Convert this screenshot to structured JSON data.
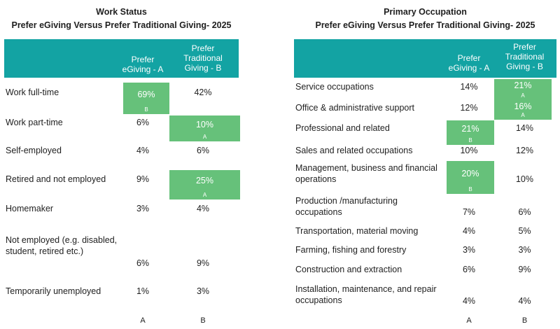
{
  "chart_data": [
    {
      "type": "table",
      "title": "Work Status",
      "subtitle": "Prefer eGiving Versus Prefer Traditional Giving- 2025",
      "columns": [
        "Prefer eGiving - A",
        "Prefer Traditional Giving - B"
      ],
      "footer": [
        "A",
        "B"
      ],
      "highlight_color": "#66c17a",
      "header_color": "#13a3a3",
      "rows": [
        {
          "label": "Work full-time",
          "a": "69%",
          "b": "42%",
          "highlight": "a",
          "sig": "B"
        },
        {
          "label": "Work part-time",
          "a": "6%",
          "b": "10%",
          "highlight": "b",
          "sig": "A"
        },
        {
          "label": "Self-employed",
          "a": "4%",
          "b": "6%",
          "highlight": "",
          "sig": ""
        },
        {
          "label": "Retired and not employed",
          "a": "9%",
          "b": "25%",
          "highlight": "b",
          "sig": "A"
        },
        {
          "label": "Homemaker",
          "a": "3%",
          "b": "4%",
          "highlight": "",
          "sig": ""
        },
        {
          "label": "Not employed (e.g. disabled, student, retired etc.)",
          "a": "6%",
          "b": "9%",
          "highlight": "",
          "sig": ""
        },
        {
          "label": "Temporarily unemployed",
          "a": "1%",
          "b": "3%",
          "highlight": "",
          "sig": ""
        }
      ]
    },
    {
      "type": "table",
      "title": "Primary Occupation",
      "subtitle": "Prefer eGiving Versus Prefer Traditional Giving- 2025",
      "columns": [
        "Prefer eGiving - A",
        "Prefer Traditional Giving - B"
      ],
      "footer": [
        "A",
        "B"
      ],
      "highlight_color": "#66c17a",
      "header_color": "#13a3a3",
      "rows": [
        {
          "label": "Service occupations",
          "a": "14%",
          "b": "21%",
          "highlight": "b",
          "sig": "A"
        },
        {
          "label": "Office & administrative support",
          "a": "12%",
          "b": "16%",
          "highlight": "b",
          "sig": "A"
        },
        {
          "label": "Professional and related",
          "a": "21%",
          "b": "14%",
          "highlight": "a",
          "sig": "B"
        },
        {
          "label": "Sales and related occupations",
          "a": "10%",
          "b": "12%",
          "highlight": "",
          "sig": ""
        },
        {
          "label": "Management, business and financial operations",
          "a": "20%",
          "b": "10%",
          "highlight": "a",
          "sig": "B"
        },
        {
          "label": "Production /manufacturing occupations",
          "a": "7%",
          "b": "6%",
          "highlight": "",
          "sig": ""
        },
        {
          "label": "Transportation, material moving",
          "a": "4%",
          "b": "5%",
          "highlight": "",
          "sig": ""
        },
        {
          "label": "Farming, fishing and forestry",
          "a": "3%",
          "b": "3%",
          "highlight": "",
          "sig": ""
        },
        {
          "label": "Construction and extraction",
          "a": "6%",
          "b": "9%",
          "highlight": "",
          "sig": ""
        },
        {
          "label": "Installation, maintenance, and repair occupations",
          "a": "4%",
          "b": "4%",
          "highlight": "",
          "sig": ""
        }
      ]
    }
  ]
}
